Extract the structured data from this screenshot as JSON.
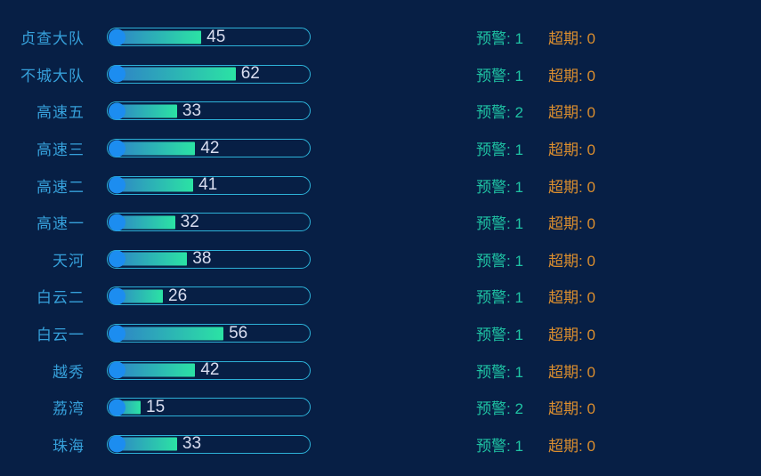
{
  "panel": {
    "background_color": "#071F45"
  },
  "labels": {
    "warning": "预警",
    "overdue": "超期"
  },
  "colors": {
    "category_label": "#36A0DA",
    "capsule_border": "#2DB2D8",
    "bar_fill_start": "#2E7FC8",
    "bar_fill_end": "#2BE3A4",
    "bar_knob": "#1C8DF0",
    "value_text": "#D9DEF0",
    "warning_text": "#1FC3A4",
    "overdue_text": "#DB8E2E"
  },
  "chart_data": {
    "type": "bar",
    "orientation": "horizontal",
    "title": "",
    "xlabel": "",
    "ylabel": "",
    "value_range": [
      0,
      100
    ],
    "grid": false,
    "legend": false,
    "categories": [
      "贞查大队",
      "不城大队",
      "高速五",
      "高速三",
      "高速二",
      "高速一",
      "天河",
      "白云二",
      "白云一",
      "越秀",
      "荔湾",
      "珠海"
    ],
    "values": [
      45,
      62,
      33,
      42,
      41,
      32,
      38,
      26,
      56,
      42,
      15,
      33
    ],
    "warning_counts": [
      1,
      1,
      2,
      1,
      1,
      1,
      1,
      1,
      1,
      1,
      2,
      1
    ],
    "overdue_counts": [
      0,
      0,
      0,
      0,
      0,
      0,
      0,
      0,
      0,
      0,
      0,
      0
    ]
  }
}
